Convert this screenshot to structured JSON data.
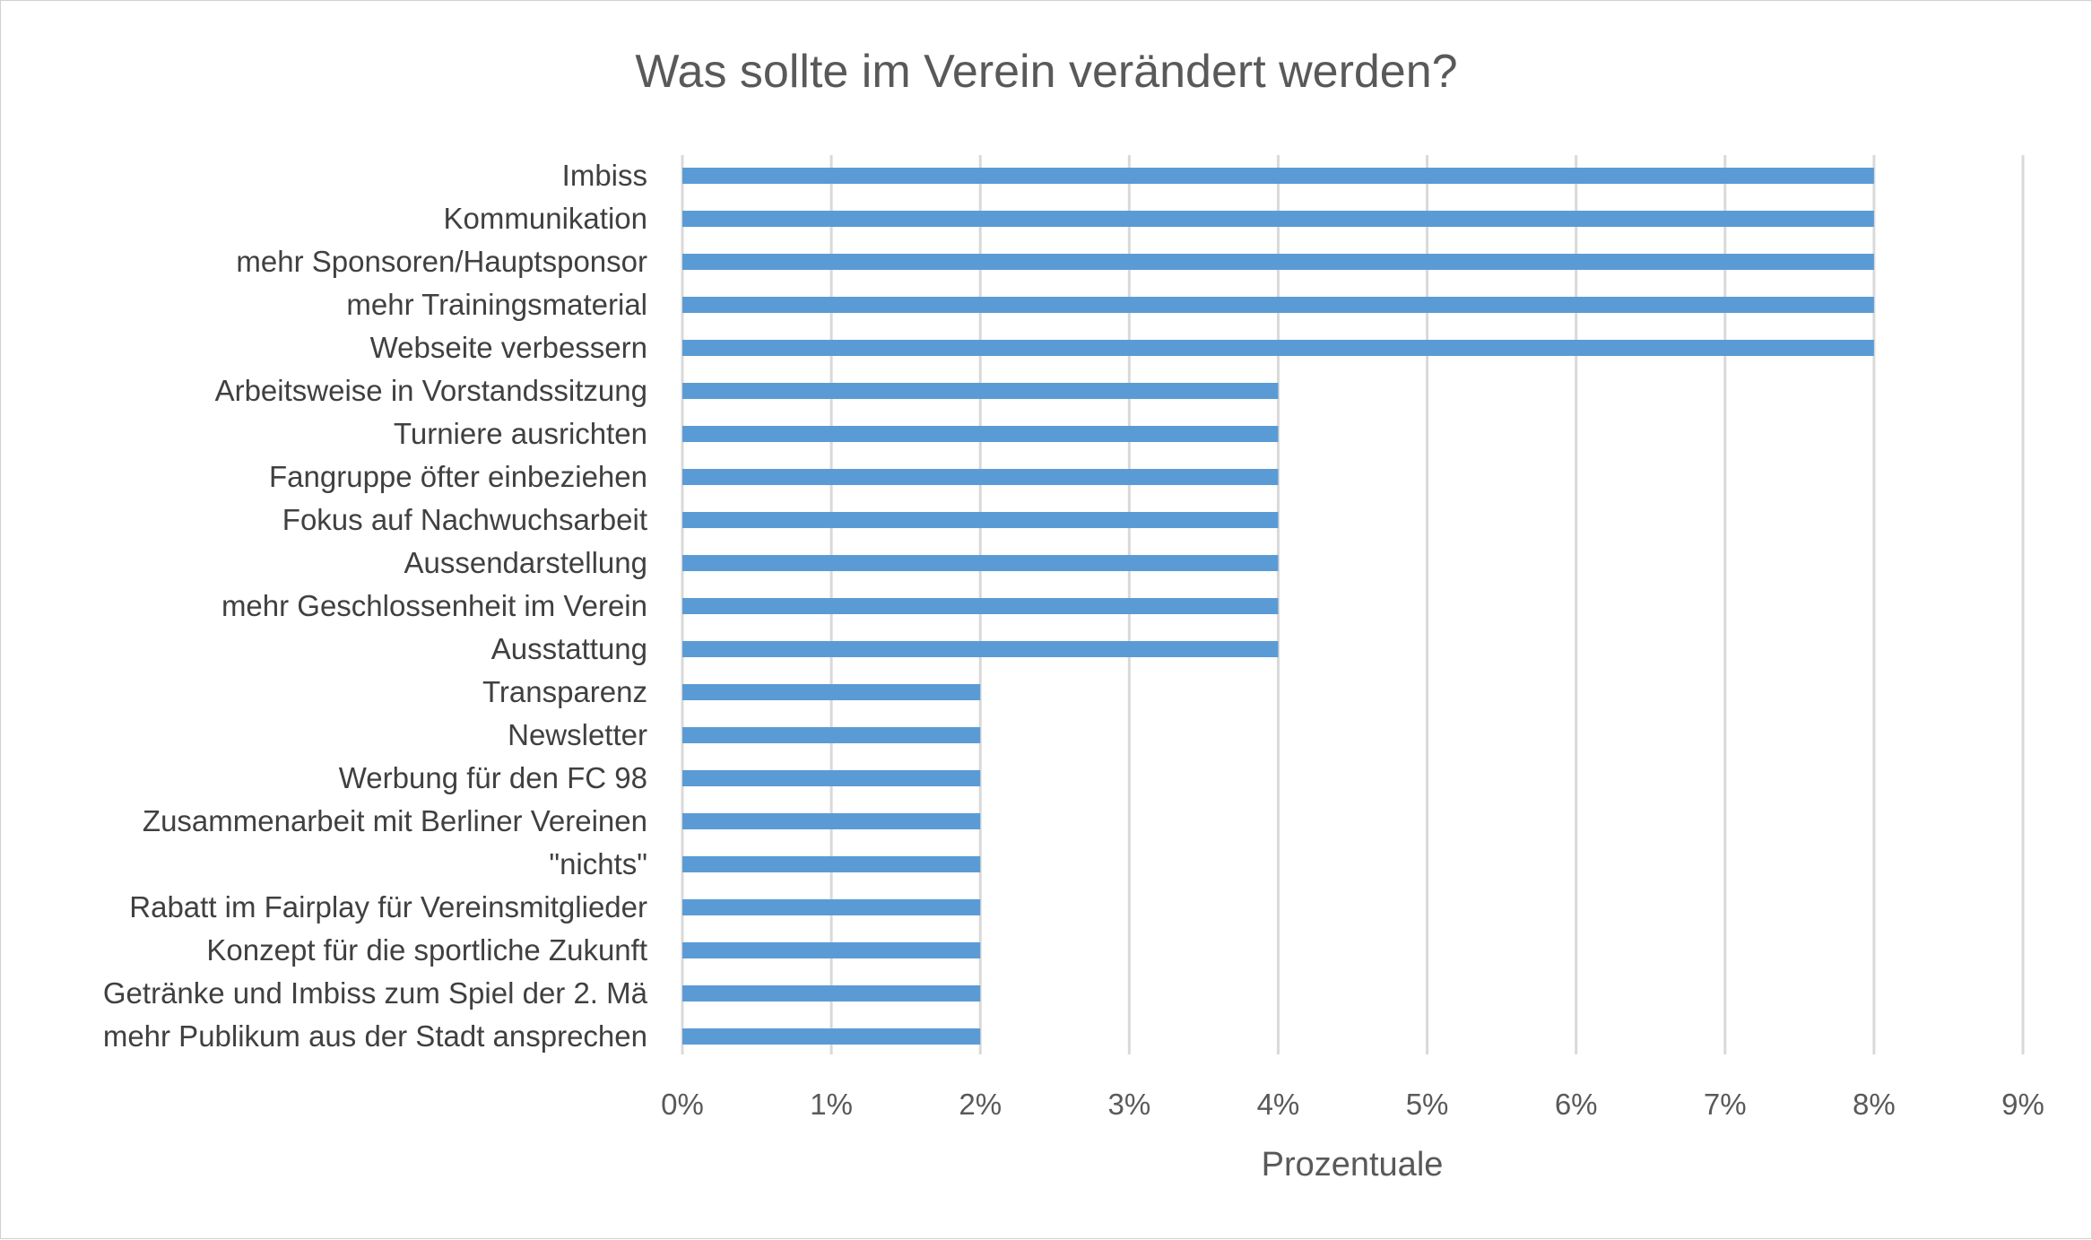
{
  "chart_data": {
    "type": "bar",
    "orientation": "horizontal",
    "title": "Was sollte im Verein verändert werden?",
    "xlabel": "Prozentuale",
    "ylabel": "",
    "xlim": [
      0,
      9
    ],
    "x_ticks": [
      "0%",
      "1%",
      "2%",
      "3%",
      "4%",
      "5%",
      "6%",
      "7%",
      "8%",
      "9%"
    ],
    "grid": "vertical",
    "legend": "none",
    "bar_color": "#5b9bd5",
    "categories": [
      "Imbiss",
      "Kommunikation",
      "mehr Sponsoren/Hauptsponsor",
      "mehr Trainingsmaterial",
      "Webseite verbessern",
      "Arbeitsweise in Vorstandssitzung",
      "Turniere ausrichten",
      "Fangruppe öfter einbeziehen",
      "Fokus auf Nachwuchsarbeit",
      "Aussendarstellung",
      "mehr Geschlossenheit im Verein",
      "Ausstattung",
      "Transparenz",
      "Newsletter",
      "Werbung für den FC 98",
      "Zusammenarbeit mit Berliner Vereinen",
      "\"nichts\"",
      "Rabatt im Fairplay für Vereinsmitglieder",
      "Konzept für die sportliche Zukunft",
      "Getränke und Imbiss zum Spiel der 2. Mä",
      "mehr Publikum aus der Stadt ansprechen"
    ],
    "values": [
      8,
      8,
      8,
      8,
      8,
      4,
      4,
      4,
      4,
      4,
      4,
      4,
      2,
      2,
      2,
      2,
      2,
      2,
      2,
      2,
      2
    ]
  }
}
